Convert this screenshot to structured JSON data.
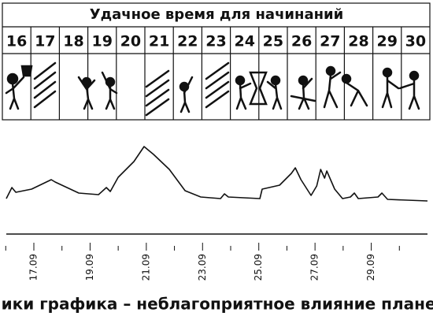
{
  "calendar": {
    "title": "Удачное время для начинаний",
    "days": [
      16,
      17,
      18,
      19,
      20,
      21,
      22,
      23,
      24,
      25,
      26,
      27,
      28,
      29,
      30
    ]
  },
  "chart_data": {
    "type": "line",
    "caption": "Пики графика – неблагоприятное влияние планет",
    "x": [
      16.02,
      16.22,
      16.36,
      16.92,
      17.62,
      17.76,
      18.6,
      19.3,
      19.58,
      19.72,
      20.0,
      20.56,
      20.92,
      21.26,
      21.82,
      22.38,
      22.94,
      23.64,
      23.78,
      23.92,
      25.04,
      25.12,
      25.74,
      26.16,
      26.3,
      26.5,
      26.86,
      27.06,
      27.2,
      27.34,
      27.42,
      27.7,
      27.98,
      28.26,
      28.4,
      28.54,
      29.24,
      29.38,
      29.58,
      31.0
    ],
    "values": [
      45,
      59,
      53,
      57,
      69,
      66,
      52,
      50,
      59,
      54,
      72,
      92,
      111,
      101,
      82,
      55,
      47,
      45,
      51,
      47,
      45,
      57,
      62,
      77,
      84,
      69,
      49,
      61,
      82,
      71,
      80,
      57,
      45,
      47,
      52,
      45,
      47,
      52,
      44,
      42
    ],
    "color": "#111111",
    "xlim": [
      16.02,
      31.0
    ],
    "ylim": [
      0,
      120
    ],
    "xticks": [
      {
        "value": 17,
        "label": "17.09"
      },
      {
        "value": 19,
        "label": "19.09"
      },
      {
        "value": 21,
        "label": "21.09"
      },
      {
        "value": 23,
        "label": "23.09"
      },
      {
        "value": 25,
        "label": "25.09"
      },
      {
        "value": 27,
        "label": "27.09"
      },
      {
        "value": 29,
        "label": "29.09"
      }
    ],
    "xminorticks": [
      16,
      18,
      20,
      22,
      24,
      26,
      28,
      30
    ]
  }
}
